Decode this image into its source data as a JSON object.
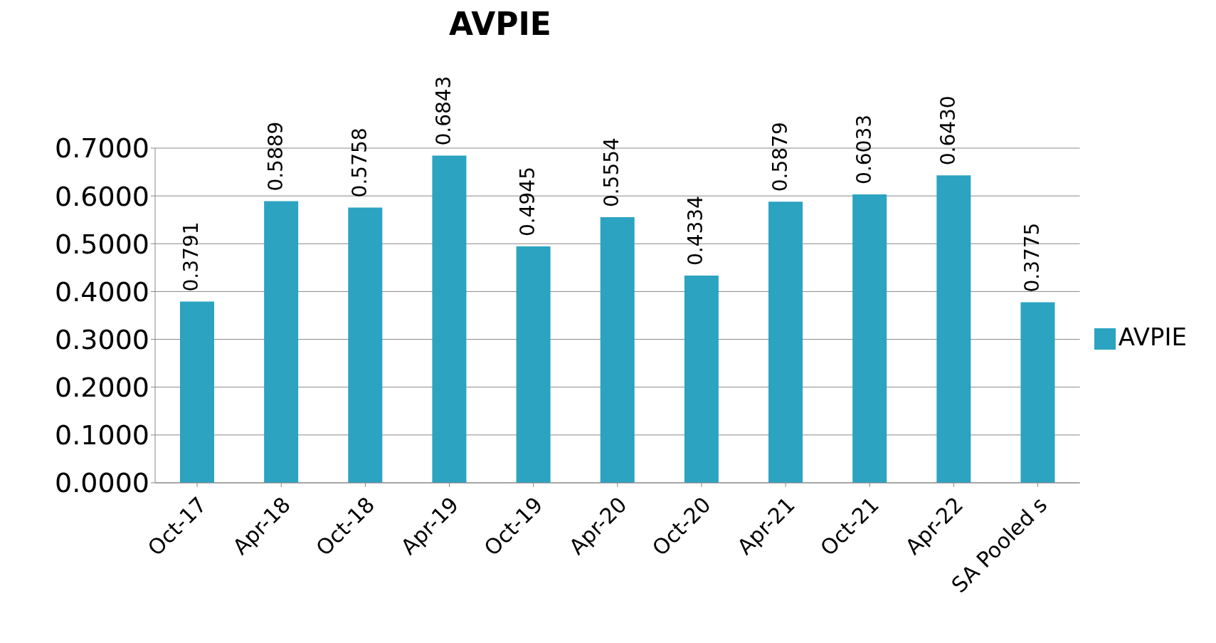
{
  "chart_data": {
    "type": "bar",
    "title": "AVPIE",
    "categories": [
      "Oct-17",
      "Apr-18",
      "Oct-18",
      "Apr-19",
      "Oct-19",
      "Apr-20",
      "Oct-20",
      "Apr-21",
      "Oct-21",
      "Apr-22",
      "SA Pooled s"
    ],
    "series": [
      {
        "name": "AVPIE",
        "color": "#2ba3c1",
        "values": [
          0.3791,
          0.5889,
          0.5758,
          0.6843,
          0.4945,
          0.5554,
          0.4334,
          0.5879,
          0.6033,
          0.643,
          0.3775
        ],
        "value_labels": [
          "0.3791",
          "0.5889",
          "0.5758",
          "0.6843",
          "0.4945",
          "0.5554",
          "0.4334",
          "0.5879",
          "0.6033",
          "0.6430",
          "0.3775"
        ]
      }
    ],
    "ylim": [
      0,
      0.7
    ],
    "yticks": [
      {
        "value": 0,
        "label": "0.0000"
      },
      {
        "value": 0.1,
        "label": "0.1000"
      },
      {
        "value": 0.2,
        "label": "0.2000"
      },
      {
        "value": 0.3,
        "label": "0.3000"
      },
      {
        "value": 0.4,
        "label": "0.4000"
      },
      {
        "value": 0.5,
        "label": "0.5000"
      },
      {
        "value": 0.6,
        "label": "0.6000"
      },
      {
        "value": 0.7,
        "label": "0.7000"
      }
    ],
    "grid": "y",
    "legend": "right"
  }
}
